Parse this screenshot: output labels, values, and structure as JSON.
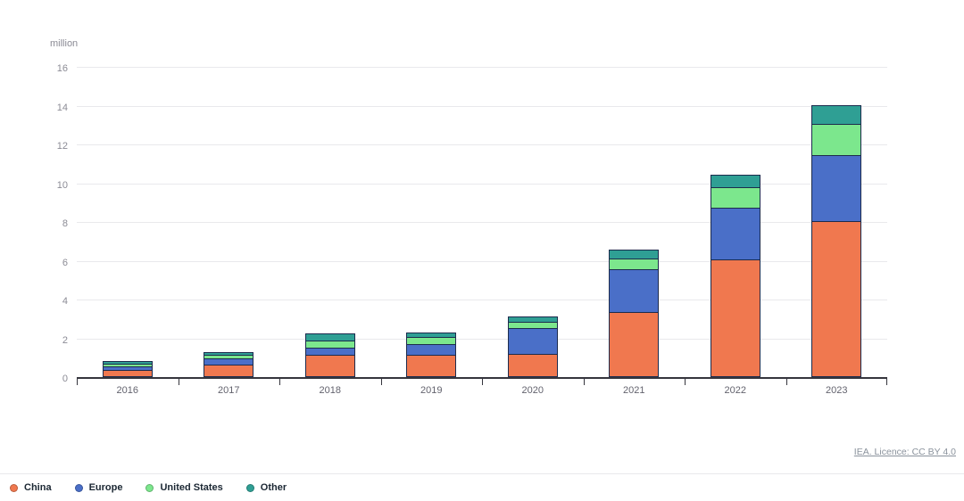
{
  "chart_data": {
    "type": "bar",
    "stacked": true,
    "title": "",
    "unit_label": "million",
    "xlabel": "",
    "ylabel": "million",
    "ylim": [
      0,
      16
    ],
    "ytick_step": 2,
    "grid": true,
    "legend_position": "bottom-left",
    "categories": [
      "2016",
      "2017",
      "2018",
      "2019",
      "2020",
      "2021",
      "2022",
      "2023"
    ],
    "series": [
      {
        "name": "China",
        "color": "#F0784F",
        "values": [
          0.34,
          0.6,
          1.1,
          1.1,
          1.15,
          3.3,
          6.0,
          8.0
        ]
      },
      {
        "name": "Europe",
        "color": "#4A6FC8",
        "values": [
          0.2,
          0.3,
          0.35,
          0.55,
          1.35,
          2.2,
          2.65,
          3.4
        ]
      },
      {
        "name": "United States",
        "color": "#7CE78D",
        "values": [
          0.15,
          0.2,
          0.35,
          0.35,
          0.3,
          0.55,
          1.05,
          1.6
        ]
      },
      {
        "name": "Other",
        "color": "#2F9F94",
        "values": [
          0.08,
          0.1,
          0.3,
          0.2,
          0.25,
          0.4,
          0.6,
          0.9
        ]
      }
    ],
    "totals": [
      0.77,
      1.2,
      2.1,
      2.2,
      3.05,
      6.45,
      10.3,
      13.9
    ],
    "segment_border_color": "#1C2B4D",
    "axis_color": "#35353d",
    "gridline_color": "#E9E9EC"
  },
  "footer": {
    "licence_text": "IEA. Licence: CC BY 4.0"
  }
}
